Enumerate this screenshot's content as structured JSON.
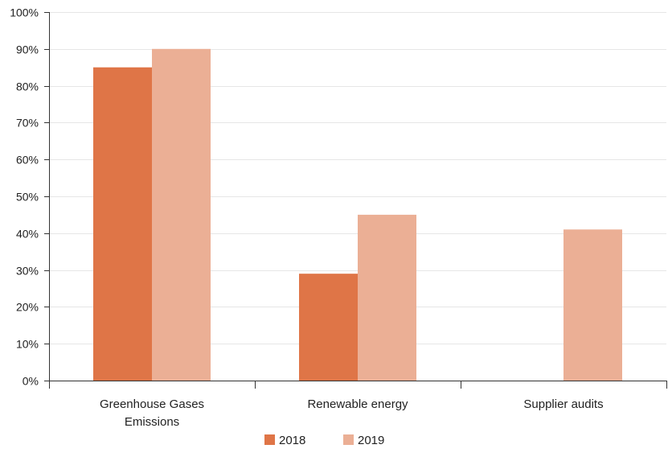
{
  "chart_data": {
    "type": "bar",
    "categories": [
      [
        "Greenhouse Gases",
        "Emissions"
      ],
      [
        "Renewable energy"
      ],
      [
        "Supplier audits"
      ]
    ],
    "series": [
      {
        "name": "2018",
        "color": "#df7547",
        "values": [
          85,
          29,
          null
        ]
      },
      {
        "name": "2019",
        "color": "#ebaf95",
        "values": [
          90,
          45,
          41
        ]
      }
    ],
    "yticks": [
      "0%",
      "10%",
      "20%",
      "30%",
      "40%",
      "50%",
      "60%",
      "70%",
      "80%",
      "90%",
      "100%"
    ],
    "ylim": [
      0,
      100
    ],
    "grid": true,
    "legend": "bottom-center"
  }
}
